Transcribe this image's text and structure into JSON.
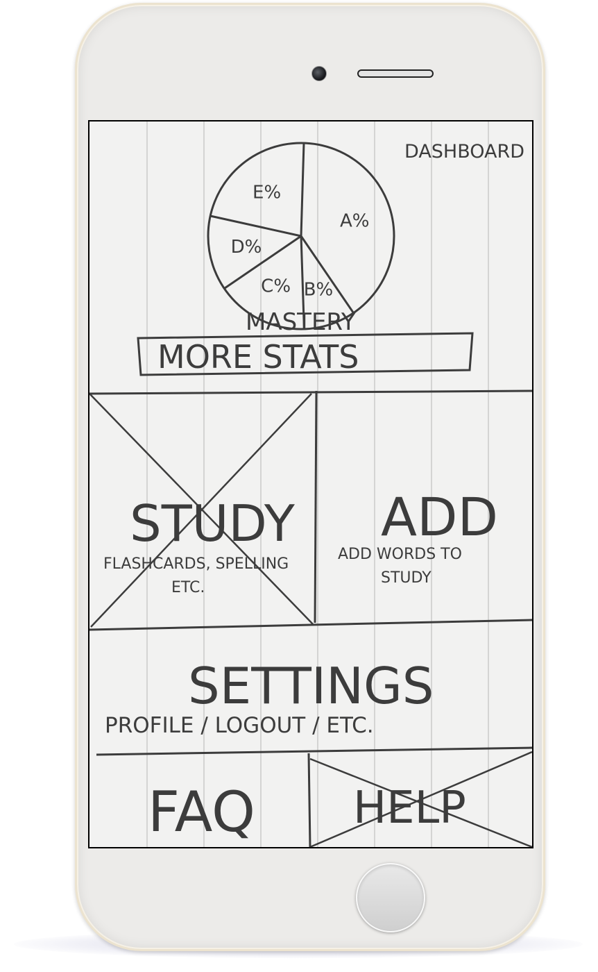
{
  "header": {
    "title": "DASHBOARD"
  },
  "chart_data": {
    "type": "pie",
    "title": "",
    "xlabel": "",
    "ylabel": "",
    "slices": [
      {
        "label": "A%",
        "value": 40
      },
      {
        "label": "B%",
        "value": 9
      },
      {
        "label": "C%",
        "value": 16
      },
      {
        "label": "D%",
        "value": 13
      },
      {
        "label": "E%",
        "value": 22
      }
    ]
  },
  "mastery": {
    "caption": "MASTERY"
  },
  "buttons": {
    "more_stats": "MORE STATS"
  },
  "tiles": {
    "study": {
      "title": "STUDY",
      "subtitle_line1": "FLASHCARDS, SPELLING",
      "subtitle_line2": "ETC."
    },
    "add": {
      "title": "ADD",
      "subtitle_line1": "ADD WORDS TO",
      "subtitle_line2": "STUDY"
    },
    "settings": {
      "title": "SETTINGS",
      "subtitle": "PROFILE / LOGOUT / ETC."
    },
    "faq": {
      "title": "FAQ"
    },
    "help": {
      "title": "HELP"
    }
  },
  "colors": {
    "pencil": "#3c3c3c",
    "paper": "#f2f2f1",
    "rule_line": "#c8c8c8",
    "phone_body": "#ecebe9"
  }
}
